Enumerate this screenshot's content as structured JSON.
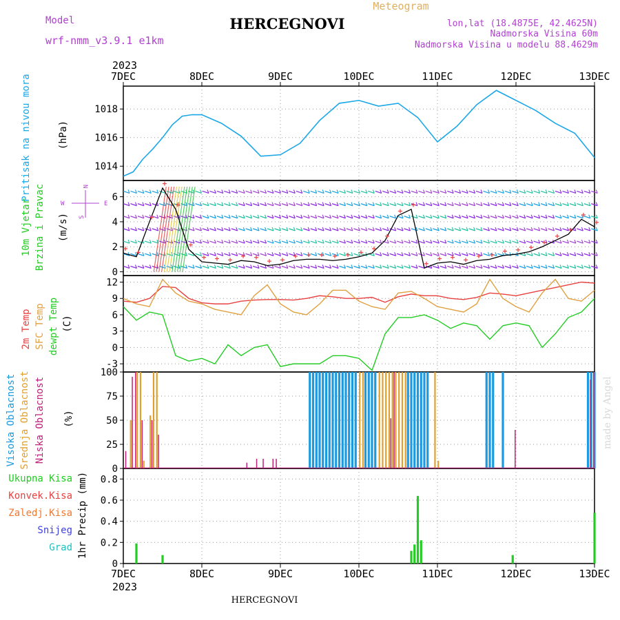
{
  "header": {
    "title": "HERCEGNOVI",
    "meteogram": "Meteogram",
    "model_label": "Model",
    "model_name": "wrf-nmm_v3.9.1 e1km",
    "lonlat": "lon,lat (18.4875E, 42.4625N)",
    "altitude": "Nadmorska Visina 60m",
    "model_altitude": "Nadmorska Visina u modelu 88.4629m",
    "footer": "HERCEGNOVI",
    "credit": "made by Angel"
  },
  "colors": {
    "pressure": "#1aa7e8",
    "temp2m": "#e84040",
    "sfc": "#e0a040",
    "dewpt": "#22cc22",
    "high_cloud": "#1a9ae0",
    "mid_cloud": "#e0a030",
    "low_cloud": "#c0207a",
    "precip": "#22cc22",
    "purple_text": "#b040d0",
    "gold_text": "#e0b060"
  },
  "chart_data": [
    {
      "type": "line",
      "name": "pressure",
      "ylabel_line1": "Pritisak na nivou mora",
      "ylabel_line2": "(hPa)",
      "yticks": [
        1014,
        1016,
        1018
      ],
      "ylim": [
        1013,
        1019.6
      ],
      "x_unit": "hours since 2023-12-07 00:00",
      "x": [
        0,
        3,
        6,
        9,
        12,
        15,
        18,
        21,
        24,
        30,
        36,
        42,
        48,
        54,
        60,
        66,
        72,
        78,
        84,
        90,
        96,
        102,
        108,
        114,
        120,
        126,
        132,
        138,
        144
      ],
      "values": [
        1013.3,
        1013.6,
        1014.5,
        1015.2,
        1016.0,
        1016.9,
        1017.5,
        1017.6,
        1017.6,
        1017.0,
        1016.1,
        1014.7,
        1014.8,
        1015.6,
        1017.2,
        1018.4,
        1018.6,
        1018.2,
        1018.4,
        1017.4,
        1015.7,
        1016.8,
        1018.3,
        1019.3,
        1018.6,
        1017.9,
        1017.0,
        1016.3,
        1014.6
      ]
    },
    {
      "type": "line",
      "name": "wind",
      "ylabel_line1": "10m Vjetar",
      "ylabel_line2": "Brzina i Pravac",
      "ylabel_unit": "(m/s)",
      "legend_w": "W",
      "legend_e": "E",
      "legend_n": "N",
      "legend_s": "S",
      "yticks": [
        0,
        2,
        4,
        6
      ],
      "ylim": [
        -0.3,
        7.3
      ],
      "x": [
        0,
        4,
        8,
        12,
        16,
        20,
        24,
        28,
        32,
        36,
        40,
        44,
        48,
        52,
        56,
        60,
        64,
        68,
        72,
        76,
        80,
        84,
        88,
        92,
        96,
        100,
        104,
        108,
        112,
        116,
        120,
        124,
        128,
        132,
        136,
        140,
        144
      ],
      "values": [
        1.5,
        1.2,
        4.0,
        6.7,
        5.0,
        1.8,
        0.8,
        0.7,
        0.6,
        0.9,
        0.8,
        0.5,
        0.6,
        0.9,
        1.0,
        1.0,
        0.9,
        1.0,
        1.2,
        1.5,
        2.5,
        4.5,
        5.0,
        0.3,
        0.7,
        0.8,
        0.6,
        0.9,
        1.0,
        1.3,
        1.4,
        1.6,
        2.0,
        2.5,
        3.0,
        4.2,
        3.6
      ]
    },
    {
      "type": "line",
      "name": "temperature",
      "ylabel_line1": "2m Temp",
      "ylabel_line2": "SFC Temp",
      "ylabel_line3": "dewpt Temp",
      "ylabel_unit": "(C)",
      "yticks": [
        -3,
        0,
        3,
        6,
        9,
        12
      ],
      "ylim": [
        -4.5,
        13.2
      ],
      "x": [
        0,
        4,
        8,
        12,
        16,
        20,
        24,
        28,
        32,
        36,
        40,
        44,
        48,
        52,
        56,
        60,
        64,
        68,
        72,
        76,
        80,
        84,
        88,
        92,
        96,
        100,
        104,
        108,
        112,
        116,
        120,
        124,
        128,
        132,
        136,
        140,
        144
      ],
      "series": [
        {
          "key": "temp2m",
          "values": [
            8.5,
            8.3,
            9.0,
            11.2,
            11.0,
            9.0,
            8.2,
            8.0,
            8.0,
            8.5,
            8.7,
            8.8,
            8.8,
            8.7,
            9.0,
            9.5,
            9.3,
            9.0,
            9.0,
            9.2,
            8.3,
            9.3,
            9.8,
            9.5,
            9.5,
            9.0,
            8.8,
            9.2,
            10.0,
            9.8,
            9.5,
            10.0,
            10.5,
            11.0,
            11.5,
            12.0,
            11.8
          ]
        },
        {
          "key": "sfc",
          "values": [
            9.0,
            8.0,
            7.5,
            12.5,
            10.0,
            8.5,
            8.0,
            7.0,
            6.5,
            6.0,
            9.5,
            11.5,
            8.0,
            6.5,
            6.0,
            8.0,
            10.5,
            10.5,
            8.5,
            7.5,
            7.0,
            10.0,
            10.3,
            9.0,
            7.5,
            7.0,
            6.5,
            8.0,
            12.5,
            9.0,
            7.5,
            6.5,
            10.0,
            12.5,
            9.0,
            8.5,
            10.5
          ]
        },
        {
          "key": "dewpt",
          "values": [
            7.5,
            5.0,
            6.5,
            6.0,
            -1.5,
            -2.5,
            -2.0,
            -3.0,
            0.5,
            -1.5,
            0.0,
            0.5,
            -3.5,
            -3.0,
            -3.0,
            -3.0,
            -1.5,
            -1.5,
            -2.0,
            -4.2,
            2.5,
            5.5,
            5.5,
            6.0,
            5.0,
            3.5,
            4.5,
            4.0,
            1.5,
            4.0,
            4.5,
            4.0,
            0.0,
            2.5,
            5.5,
            6.5,
            9.0
          ]
        }
      ]
    },
    {
      "type": "bar",
      "name": "cloud",
      "ylabel_line1": "Visoka Oblacnost",
      "ylabel_line2": "Srednja Oblacnost",
      "ylabel_line3": "Niska Oblacnost",
      "ylabel_unit": "(%)",
      "yticks": [
        0,
        25,
        50,
        75,
        100
      ],
      "ylim": [
        0,
        100
      ],
      "series": [
        {
          "key": "high_cloud",
          "x": [
            57,
            58,
            59,
            60,
            61,
            62,
            63,
            64,
            65,
            66,
            67,
            68,
            69,
            70,
            71,
            74,
            75,
            76,
            77,
            87,
            88,
            89,
            90,
            91,
            92,
            93,
            111,
            112,
            113,
            116,
            142,
            143,
            144
          ],
          "values": [
            100,
            100,
            100,
            100,
            100,
            100,
            100,
            100,
            100,
            100,
            100,
            100,
            100,
            100,
            100,
            100,
            100,
            100,
            100,
            100,
            100,
            100,
            100,
            100,
            100,
            100,
            100,
            100,
            100,
            100,
            100,
            100,
            100
          ]
        },
        {
          "key": "mid_cloud",
          "x": [
            2,
            4,
            5,
            6,
            8,
            9,
            10,
            72,
            73,
            78,
            79,
            80,
            81,
            82,
            83,
            84,
            85,
            86,
            95,
            96
          ],
          "values": [
            50,
            100,
            100,
            8,
            55,
            100,
            100,
            100,
            100,
            100,
            100,
            100,
            100,
            100,
            100,
            100,
            100,
            100,
            100,
            8
          ]
        },
        {
          "key": "low_cloud",
          "x": [
            1,
            3,
            4,
            6,
            9,
            11,
            38,
            41,
            43,
            46,
            47,
            82,
            83,
            120,
            143,
            144
          ],
          "values": [
            18,
            95,
            100,
            50,
            50,
            35,
            6,
            10,
            10,
            10,
            10,
            52,
            100,
            40,
            92,
            100
          ]
        }
      ]
    },
    {
      "type": "bar",
      "name": "precip",
      "legend_total": "Ukupna Kisa",
      "legend_conv": "Konvek.Kisa",
      "legend_frozen": "Zaledj.Kisa",
      "legend_snow": "Snijeg",
      "legend_hail": "Grad",
      "ylabel": "1hr Precip (mm)",
      "yticks": [
        "0",
        "0.2",
        "0.4",
        "0.6",
        "0.8"
      ],
      "ylim": [
        0,
        0.9
      ],
      "x": [
        4,
        12,
        88,
        89,
        90,
        91,
        119,
        144
      ],
      "values": [
        0.19,
        0.08,
        0.12,
        0.18,
        0.64,
        0.22,
        0.08,
        0.48
      ]
    }
  ],
  "time_axis": {
    "year": "2023",
    "labels": [
      "7DEC",
      "8DEC",
      "9DEC",
      "10DEC",
      "11DEC",
      "12DEC",
      "13DEC"
    ],
    "hours": [
      0,
      24,
      48,
      72,
      96,
      120,
      144
    ]
  }
}
